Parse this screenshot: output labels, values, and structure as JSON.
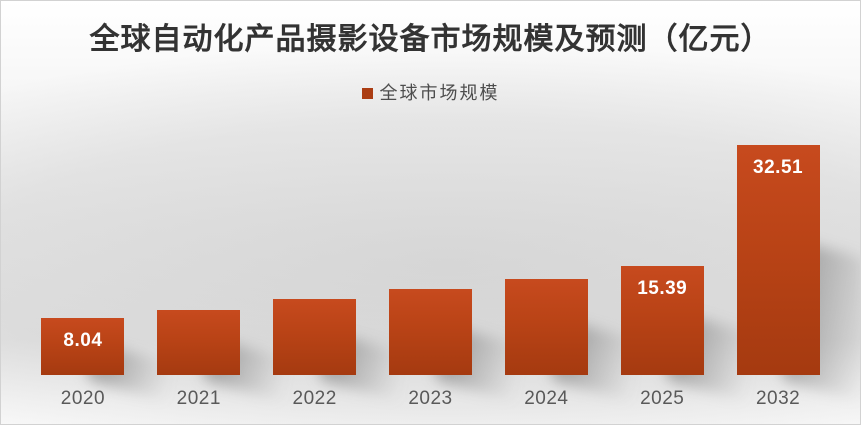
{
  "window": {
    "kind": "static-chart-image"
  },
  "legend": {
    "items": [
      {
        "label": "全球市场规模",
        "color": "#ab3d13"
      }
    ]
  },
  "colors": {
    "bar_gradient_top": "#c74a1e",
    "bar_gradient_mid": "#b94316",
    "bar_gradient_bottom": "#a53a10",
    "data_label_text": "#ffffff",
    "axis_label_text": "#595959",
    "title_text": "#333333",
    "background_gray": "#dbdbdb",
    "frame_border": "#d2d2d2"
  },
  "chart_data": {
    "type": "bar",
    "title": "全球自动化产品摄影设备市场规模及预测（亿元）",
    "xlabel": "",
    "ylabel": "",
    "categories": [
      "2020",
      "2021",
      "2022",
      "2023",
      "2024",
      "2025",
      "2032"
    ],
    "series": [
      {
        "name": "全球市场规模",
        "values": [
          8.04,
          9.2,
          10.7,
          12.2,
          13.6,
          15.39,
          32.51
        ],
        "shown_labels": [
          "8.04",
          null,
          null,
          null,
          null,
          "15.39",
          "32.51"
        ]
      }
    ],
    "ylim": [
      0,
      34
    ],
    "grid": false,
    "y_axis_visible": false,
    "x_axis_line_visible": false,
    "legend_position": "top-center",
    "bar_style": "vertical gradient orange-red with soft cast shadow to bottom-right"
  }
}
